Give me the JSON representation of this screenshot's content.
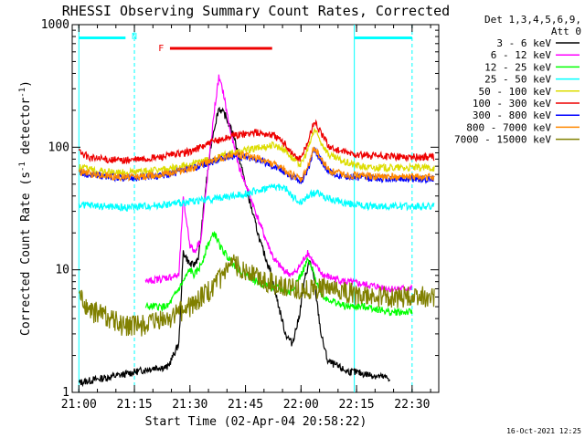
{
  "chart_data": {
    "type": "line",
    "title": "RHESSI Observing Summary Count Rates, Corrected",
    "xlabel": "Start Time (02-Apr-04 20:58:22)",
    "ylabel_main": "Corrected Count Rate (s",
    "ylabel_sup1": "-1",
    "ylabel_mid": " detector",
    "ylabel_sup2": "-1",
    "ylabel_end": ")",
    "y_scale": "log",
    "ylim": [
      1,
      1000
    ],
    "xlim": [
      20.97,
      22.62
    ],
    "x_ticks": [
      {
        "value": 21.0,
        "label": "21:00"
      },
      {
        "value": 21.25,
        "label": "21:15"
      },
      {
        "value": 21.5,
        "label": "21:30"
      },
      {
        "value": 21.75,
        "label": "21:45"
      },
      {
        "value": 22.0,
        "label": "22:00"
      },
      {
        "value": 22.25,
        "label": "22:15"
      },
      {
        "value": 22.5,
        "label": "22:30"
      }
    ],
    "y_ticks": [
      {
        "value": 1,
        "label": "1"
      },
      {
        "value": 10,
        "label": "10"
      },
      {
        "value": 100,
        "label": "100"
      },
      {
        "value": 1000,
        "label": "1000"
      }
    ],
    "legend_header_1": "Det 1,3,4,5,6,9,",
    "legend_header_2": "Att 0",
    "legend_position": "right",
    "grid": false,
    "series": [
      {
        "name": "3 - 6 keV",
        "color": "#000000",
        "points": [
          [
            21.0,
            1.2
          ],
          [
            21.2,
            1.4
          ],
          [
            21.35,
            1.6
          ],
          [
            21.4,
            1.6
          ],
          [
            21.45,
            2.5
          ],
          [
            21.47,
            14
          ],
          [
            21.5,
            11
          ],
          [
            21.52,
            11
          ],
          [
            21.54,
            13
          ],
          [
            21.57,
            45
          ],
          [
            21.6,
            120
          ],
          [
            21.63,
            210
          ],
          [
            21.66,
            180
          ],
          [
            21.7,
            120
          ],
          [
            21.74,
            60
          ],
          [
            21.78,
            30
          ],
          [
            21.82,
            16
          ],
          [
            21.86,
            10
          ],
          [
            21.9,
            5
          ],
          [
            21.93,
            3
          ],
          [
            21.96,
            2.5
          ],
          [
            21.99,
            4
          ],
          [
            22.02,
            9
          ],
          [
            22.04,
            12
          ],
          [
            22.06,
            8
          ],
          [
            22.09,
            3
          ],
          [
            22.12,
            1.8
          ],
          [
            22.2,
            1.5
          ],
          [
            22.3,
            1.4
          ],
          [
            22.4,
            1.3
          ]
        ]
      },
      {
        "name": "6 - 12 keV",
        "color": "#ff00ff",
        "points": [
          [
            21.3,
            8
          ],
          [
            21.45,
            9
          ],
          [
            21.47,
            38
          ],
          [
            21.5,
            16
          ],
          [
            21.52,
            14
          ],
          [
            21.55,
            18
          ],
          [
            21.58,
            60
          ],
          [
            21.61,
            200
          ],
          [
            21.63,
            370
          ],
          [
            21.65,
            280
          ],
          [
            21.68,
            140
          ],
          [
            21.72,
            70
          ],
          [
            21.76,
            45
          ],
          [
            21.8,
            28
          ],
          [
            21.84,
            18
          ],
          [
            21.88,
            12
          ],
          [
            21.92,
            10
          ],
          [
            21.96,
            9
          ],
          [
            22.0,
            11
          ],
          [
            22.03,
            14
          ],
          [
            22.06,
            11
          ],
          [
            22.1,
            9
          ],
          [
            22.2,
            8
          ],
          [
            22.3,
            7.5
          ],
          [
            22.4,
            7
          ],
          [
            22.5,
            7
          ]
        ]
      },
      {
        "name": "12 - 25 keV",
        "color": "#00ff00",
        "points": [
          [
            21.3,
            5
          ],
          [
            21.4,
            5
          ],
          [
            21.47,
            8
          ],
          [
            21.5,
            10
          ],
          [
            21.52,
            9
          ],
          [
            21.55,
            11
          ],
          [
            21.58,
            16
          ],
          [
            21.61,
            20
          ],
          [
            21.64,
            15
          ],
          [
            21.68,
            12
          ],
          [
            21.72,
            10
          ],
          [
            21.76,
            9
          ],
          [
            21.8,
            8
          ],
          [
            21.85,
            7.5
          ],
          [
            21.9,
            7
          ],
          [
            21.95,
            6.5
          ],
          [
            22.0,
            9
          ],
          [
            22.03,
            12
          ],
          [
            22.06,
            9
          ],
          [
            22.1,
            6
          ],
          [
            22.2,
            5
          ],
          [
            22.3,
            5
          ],
          [
            22.4,
            4.5
          ],
          [
            22.5,
            4.5
          ]
        ]
      },
      {
        "name": "25 - 50 keV",
        "color": "#00ffff",
        "points": [
          [
            21.0,
            34
          ],
          [
            21.1,
            33
          ],
          [
            21.2,
            32
          ],
          [
            21.3,
            33
          ],
          [
            21.4,
            34
          ],
          [
            21.5,
            36
          ],
          [
            21.6,
            38
          ],
          [
            21.7,
            40
          ],
          [
            21.8,
            44
          ],
          [
            21.88,
            48
          ],
          [
            21.93,
            46
          ],
          [
            21.97,
            38
          ],
          [
            22.0,
            35
          ],
          [
            22.03,
            40
          ],
          [
            22.07,
            43
          ],
          [
            22.12,
            38
          ],
          [
            22.2,
            35
          ],
          [
            22.3,
            33
          ],
          [
            22.4,
            33
          ],
          [
            22.5,
            33
          ],
          [
            22.6,
            33
          ]
        ]
      },
      {
        "name": "50 - 100 keV",
        "color": "#dddd00",
        "points": [
          [
            21.0,
            68
          ],
          [
            21.1,
            64
          ],
          [
            21.2,
            62
          ],
          [
            21.3,
            64
          ],
          [
            21.4,
            66
          ],
          [
            21.5,
            72
          ],
          [
            21.6,
            80
          ],
          [
            21.7,
            90
          ],
          [
            21.8,
            98
          ],
          [
            21.88,
            105
          ],
          [
            21.93,
            95
          ],
          [
            21.97,
            78
          ],
          [
            22.0,
            72
          ],
          [
            22.03,
            95
          ],
          [
            22.06,
            140
          ],
          [
            22.09,
            110
          ],
          [
            22.13,
            85
          ],
          [
            22.2,
            75
          ],
          [
            22.3,
            68
          ],
          [
            22.4,
            68
          ],
          [
            22.5,
            68
          ],
          [
            22.6,
            68
          ]
        ]
      },
      {
        "name": "100 - 300 keV",
        "color": "#ee0000",
        "points": [
          [
            21.0,
            92
          ],
          [
            21.05,
            82
          ],
          [
            21.1,
            80
          ],
          [
            21.2,
            78
          ],
          [
            21.3,
            80
          ],
          [
            21.4,
            85
          ],
          [
            21.5,
            92
          ],
          [
            21.6,
            110
          ],
          [
            21.7,
            125
          ],
          [
            21.8,
            132
          ],
          [
            21.88,
            125
          ],
          [
            21.93,
            105
          ],
          [
            21.97,
            85
          ],
          [
            22.0,
            80
          ],
          [
            22.03,
            110
          ],
          [
            22.06,
            165
          ],
          [
            22.09,
            130
          ],
          [
            22.13,
            100
          ],
          [
            22.2,
            90
          ],
          [
            22.3,
            85
          ],
          [
            22.4,
            84
          ],
          [
            22.5,
            83
          ],
          [
            22.6,
            83
          ]
        ]
      },
      {
        "name": "300 - 800 keV",
        "color": "#0000ff",
        "points": [
          [
            21.0,
            62
          ],
          [
            21.1,
            58
          ],
          [
            21.2,
            56
          ],
          [
            21.3,
            57
          ],
          [
            21.4,
            60
          ],
          [
            21.5,
            66
          ],
          [
            21.6,
            76
          ],
          [
            21.7,
            86
          ],
          [
            21.8,
            80
          ],
          [
            21.88,
            70
          ],
          [
            21.93,
            62
          ],
          [
            21.97,
            56
          ],
          [
            22.0,
            52
          ],
          [
            22.03,
            66
          ],
          [
            22.06,
            95
          ],
          [
            22.09,
            78
          ],
          [
            22.13,
            62
          ],
          [
            22.2,
            58
          ],
          [
            22.3,
            56
          ],
          [
            22.4,
            55
          ],
          [
            22.5,
            55
          ],
          [
            22.6,
            55
          ]
        ]
      },
      {
        "name": "800 - 7000 keV",
        "color": "#ff8800",
        "points": [
          [
            21.0,
            63
          ],
          [
            21.1,
            59
          ],
          [
            21.2,
            57
          ],
          [
            21.3,
            58
          ],
          [
            21.4,
            61
          ],
          [
            21.5,
            67
          ],
          [
            21.6,
            78
          ],
          [
            21.7,
            88
          ],
          [
            21.8,
            82
          ],
          [
            21.88,
            72
          ],
          [
            21.93,
            64
          ],
          [
            21.97,
            58
          ],
          [
            22.0,
            54
          ],
          [
            22.03,
            68
          ],
          [
            22.06,
            100
          ],
          [
            22.09,
            80
          ],
          [
            22.13,
            64
          ],
          [
            22.2,
            60
          ],
          [
            22.3,
            58
          ],
          [
            22.4,
            57
          ],
          [
            22.5,
            57
          ],
          [
            22.6,
            57
          ]
        ]
      },
      {
        "name": "7000 - 15000 keV",
        "color": "#808000",
        "points": [
          [
            21.0,
            6
          ],
          [
            21.05,
            4.5
          ],
          [
            21.1,
            4.5
          ],
          [
            21.2,
            3.5
          ],
          [
            21.3,
            3.5
          ],
          [
            21.4,
            4
          ],
          [
            21.5,
            5
          ],
          [
            21.55,
            6
          ],
          [
            21.6,
            7
          ],
          [
            21.65,
            9
          ],
          [
            21.7,
            11
          ],
          [
            21.75,
            10
          ],
          [
            21.8,
            9
          ],
          [
            21.85,
            8
          ],
          [
            21.9,
            7.5
          ],
          [
            21.95,
            7
          ],
          [
            22.0,
            7
          ],
          [
            22.05,
            7
          ],
          [
            22.1,
            7
          ],
          [
            22.2,
            6.5
          ],
          [
            22.3,
            6
          ],
          [
            22.4,
            6
          ],
          [
            22.5,
            6
          ],
          [
            22.6,
            6
          ]
        ]
      }
    ],
    "markers": [
      {
        "type": "segment",
        "color": "#00ffff",
        "y": 780,
        "x": [
          21.0,
          21.21
        ]
      },
      {
        "type": "segment",
        "color": "#00ffff",
        "y": 780,
        "x": [
          22.24,
          22.5
        ]
      },
      {
        "type": "segment",
        "color": "#ee0000",
        "y": 640,
        "x": [
          21.41,
          21.87
        ]
      },
      {
        "type": "label",
        "text": "N",
        "color": "#00ffff",
        "x": 21.25,
        "y": 800
      },
      {
        "type": "label",
        "text": "F",
        "color": "#ee0000",
        "x": 21.37,
        "y": 640
      },
      {
        "type": "vline",
        "color": "#00ffff",
        "x": 21.0,
        "style": "solid"
      },
      {
        "type": "vline",
        "color": "#00ffff",
        "x": 21.25,
        "style": "dashed"
      },
      {
        "type": "vline",
        "color": "#00ffff",
        "x": 22.24,
        "style": "solid"
      },
      {
        "type": "vline",
        "color": "#00ffff",
        "x": 22.5,
        "style": "dashed"
      }
    ]
  },
  "footer": {
    "timestamp": "16-Oct-2021 12:25"
  }
}
